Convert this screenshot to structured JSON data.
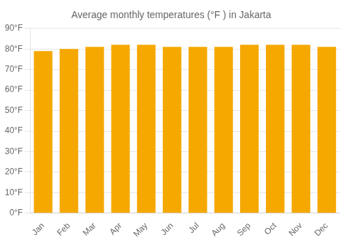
{
  "chart_data": {
    "type": "bar",
    "title": "Average monthly temperatures (°F ) in Jakarta",
    "categories": [
      "Jan",
      "Feb",
      "Mar",
      "Apr",
      "May",
      "Jun",
      "Jul",
      "Aug",
      "Sep",
      "Oct",
      "Nov",
      "Dec"
    ],
    "values": [
      79,
      80,
      81,
      82,
      82,
      81,
      81,
      81,
      82,
      82,
      82,
      81
    ],
    "color": "#F5A800",
    "ylim": [
      0,
      90
    ],
    "yticks": [
      {
        "value": 0,
        "label": "0°F"
      },
      {
        "value": 10,
        "label": "10°F"
      },
      {
        "value": 20,
        "label": "20°F"
      },
      {
        "value": 30,
        "label": "30°F"
      },
      {
        "value": 40,
        "label": "40°F"
      },
      {
        "value": 50,
        "label": "50°F"
      },
      {
        "value": 60,
        "label": "60°F"
      },
      {
        "value": 70,
        "label": "70°F"
      },
      {
        "value": 80,
        "label": "80°F"
      },
      {
        "value": 90,
        "label": "90°F"
      }
    ],
    "grid": true
  }
}
